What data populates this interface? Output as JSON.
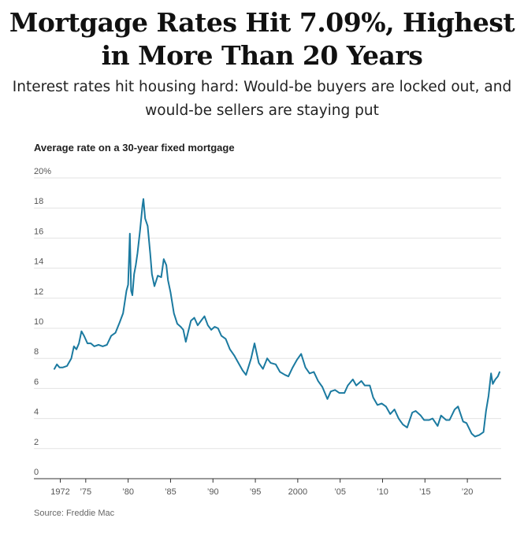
{
  "headline": "Mortgage Rates Hit 7.09%, Highest in More Than 20 Years",
  "dek": "Interest rates hit housing hard: Would-be buyers are locked out, and would-be sellers are staying put",
  "source": "Source: Freddie Mac",
  "chart_data": {
    "type": "line",
    "title": "Average rate on a 30-year fixed mortgage",
    "xlabel": "",
    "ylabel": "",
    "ylim": [
      0,
      20
    ],
    "xlim": [
      1971.3,
      2023.8
    ],
    "grid": true,
    "y_ticks": [
      0,
      2,
      4,
      6,
      8,
      10,
      12,
      14,
      16,
      18,
      20
    ],
    "y_tick_labels": [
      "0",
      "2",
      "4",
      "6",
      "8",
      "10",
      "12",
      "14",
      "16",
      "18",
      "20%"
    ],
    "x_ticks": [
      1972,
      1975,
      1980,
      1985,
      1990,
      1995,
      2000,
      2005,
      2010,
      2015,
      2020
    ],
    "x_tick_labels": [
      "1972",
      "’75",
      "’80",
      "’85",
      "’90",
      "’95",
      "2000",
      "’05",
      "’10",
      "’15",
      "’20"
    ],
    "color": "#1b7aa0",
    "series": [
      {
        "x": [
          1971.3,
          1971.6,
          1971.9,
          1972.3,
          1972.8,
          1973.3,
          1973.6,
          1973.9,
          1974.2,
          1974.5,
          1974.8,
          1975.2,
          1975.6,
          1976.0,
          1976.5,
          1977.0,
          1977.5,
          1978.0,
          1978.5,
          1979.0,
          1979.4,
          1979.8,
          1980.0,
          1980.2,
          1980.35,
          1980.5,
          1980.7,
          1980.9,
          1981.1,
          1981.4,
          1981.7,
          1981.8,
          1982.0,
          1982.3,
          1982.6,
          1982.8,
          1983.1,
          1983.5,
          1983.9,
          1984.2,
          1984.5,
          1984.7,
          1985.0,
          1985.4,
          1985.8,
          1986.2,
          1986.5,
          1986.8,
          1987.1,
          1987.4,
          1987.8,
          1988.2,
          1988.6,
          1989.0,
          1989.4,
          1989.8,
          1990.2,
          1990.6,
          1991.0,
          1991.5,
          1992.0,
          1992.5,
          1993.0,
          1993.5,
          1993.9,
          1994.5,
          1994.9,
          1995.4,
          1995.9,
          1996.4,
          1996.8,
          1997.4,
          1997.9,
          1998.5,
          1998.9,
          1999.4,
          1999.9,
          2000.4,
          2000.9,
          2001.4,
          2001.9,
          2002.4,
          2002.9,
          2003.5,
          2003.9,
          2004.4,
          2004.9,
          2005.5,
          2005.9,
          2006.5,
          2006.9,
          2007.5,
          2007.9,
          2008.5,
          2008.9,
          2009.4,
          2009.9,
          2010.4,
          2010.9,
          2011.4,
          2011.9,
          2012.4,
          2012.9,
          2013.5,
          2013.9,
          2014.5,
          2014.9,
          2015.5,
          2015.9,
          2016.5,
          2016.9,
          2017.5,
          2017.9,
          2018.5,
          2018.9,
          2019.5,
          2019.9,
          2020.5,
          2020.9,
          2021.4,
          2021.9,
          2022.2,
          2022.5,
          2022.8,
          2023.0,
          2023.3,
          2023.6,
          2023.8
        ],
        "values": [
          7.3,
          7.6,
          7.4,
          7.4,
          7.5,
          8.0,
          8.8,
          8.6,
          9.0,
          9.8,
          9.5,
          9.0,
          9.0,
          8.8,
          8.9,
          8.8,
          8.9,
          9.5,
          9.7,
          10.4,
          11.0,
          12.5,
          12.9,
          16.3,
          12.5,
          12.2,
          13.6,
          14.2,
          15.0,
          16.5,
          18.2,
          18.6,
          17.3,
          16.8,
          15.0,
          13.6,
          12.8,
          13.5,
          13.4,
          14.6,
          14.2,
          13.2,
          12.4,
          11.0,
          10.3,
          10.1,
          9.9,
          9.1,
          9.8,
          10.5,
          10.7,
          10.2,
          10.5,
          10.8,
          10.2,
          9.9,
          10.1,
          10.0,
          9.5,
          9.3,
          8.6,
          8.2,
          7.7,
          7.2,
          6.9,
          8.0,
          9.0,
          7.7,
          7.3,
          8.0,
          7.7,
          7.6,
          7.1,
          6.9,
          6.8,
          7.4,
          7.9,
          8.3,
          7.4,
          7.0,
          7.1,
          6.5,
          6.1,
          5.3,
          5.8,
          5.9,
          5.7,
          5.7,
          6.2,
          6.6,
          6.2,
          6.5,
          6.2,
          6.2,
          5.4,
          4.9,
          5.0,
          4.8,
          4.3,
          4.6,
          4.0,
          3.6,
          3.4,
          4.4,
          4.5,
          4.2,
          3.9,
          3.9,
          4.0,
          3.5,
          4.2,
          3.9,
          3.9,
          4.6,
          4.8,
          3.8,
          3.7,
          3.0,
          2.8,
          2.9,
          3.1,
          4.5,
          5.5,
          7.0,
          6.3,
          6.6,
          6.8,
          7.09
        ]
      }
    ]
  }
}
